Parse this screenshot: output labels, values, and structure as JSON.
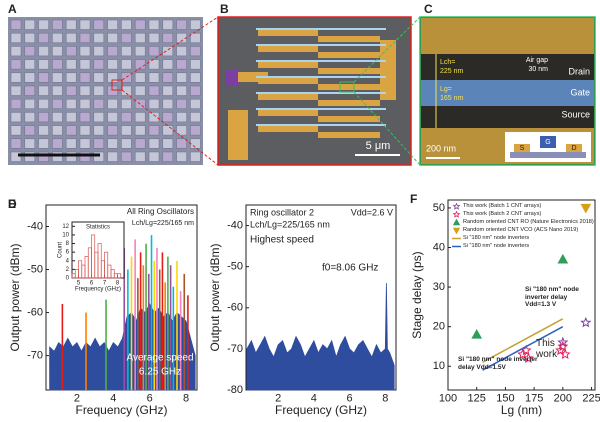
{
  "panels": {
    "a": {
      "label": "A"
    },
    "b": {
      "label": "B",
      "scale_bar": "5 μm"
    },
    "c": {
      "label": "C",
      "drain": "Drain",
      "gate": "Gate",
      "source": "Source",
      "air_gap": "Air gap",
      "air_gap_size": "30 nm",
      "lch": "Lch=",
      "lch_value": "225 nm",
      "lg": "Lg=",
      "lg_value": "165 nm",
      "scale_bar": "200 nm",
      "s": "S",
      "g": "G",
      "d": "D"
    }
  },
  "chart_data": [
    {
      "type": "spectrum",
      "label": "D",
      "xlabel": "Frequency (GHz)",
      "ylabel": "Output power (dBm)",
      "xlim": [
        0.3,
        8.6
      ],
      "ylim": [
        -78,
        -35
      ],
      "xticks": [
        2,
        4,
        6,
        8
      ],
      "yticks": [
        -40,
        -50,
        -60,
        -70
      ],
      "annotations": [
        "All Ring Oscillators",
        "Lch/Lg=225/165 nm",
        "Average speed",
        "6.25 GHz"
      ],
      "x": [
        0.5,
        0.75,
        1,
        1.25,
        1.5,
        1.75,
        2,
        2.25,
        2.5,
        2.75,
        3,
        3.25,
        3.5,
        3.75,
        4,
        4.25,
        4.5,
        4.75,
        5,
        5.25,
        5.5,
        5.75,
        6,
        6.25,
        6.5,
        6.75,
        7,
        7.25,
        7.5,
        7.75,
        8,
        8.25,
        8.5
      ],
      "series": [
        {
          "color": "#2f4d9e",
          "values": [
            -68,
            -69,
            -67,
            -68,
            -66,
            -68,
            -67,
            -69,
            -67,
            -68,
            -66,
            -68,
            -67,
            -69,
            -67,
            -68,
            -66,
            -61,
            -60,
            -62,
            -59,
            -60,
            -58,
            -60,
            -59,
            -61,
            -60,
            -62,
            -60,
            -61,
            -62,
            -66,
            -70
          ]
        }
      ],
      "peaks": {
        "x": [
          1.2,
          2.5,
          3.6,
          4.6,
          4.8,
          5.0,
          5.2,
          5.35,
          5.5,
          5.65,
          5.8,
          5.95,
          6.1,
          6.25,
          6.4,
          6.55,
          6.7,
          6.85,
          7.0,
          7.15,
          7.3,
          7.5,
          7.7,
          7.9,
          8.1
        ],
        "values": [
          -58,
          -60,
          -57,
          -45,
          -50,
          -47,
          -43,
          -52,
          -46,
          -49,
          -44,
          -51,
          -42,
          -48,
          -45,
          -50,
          -46,
          -53,
          -47,
          -49,
          -54,
          -48,
          -55,
          -51,
          -56
        ],
        "colors": [
          "#e41a1c",
          "#ff7f00",
          "#4daf4a",
          "#984ea3",
          "#00bcd4",
          "#ffd700",
          "#f781bf",
          "#a65628",
          "#e41a1c",
          "#ff7f00",
          "#4daf4a",
          "#984ea3",
          "#00bcd4",
          "#ffd700",
          "#f781bf",
          "#a65628",
          "#e41a1c",
          "#ff7f00",
          "#4daf4a",
          "#984ea3",
          "#00bcd4",
          "#ffd700",
          "#f781bf",
          "#a65628",
          "#e41a1c"
        ]
      },
      "inset": {
        "type": "histogram",
        "title": "Statistics",
        "xlabel": "Frequency (GHz)",
        "ylabel": "Count",
        "color": "#d9534f",
        "bins": [
          4.5,
          4.75,
          5,
          5.25,
          5.5,
          5.75,
          6,
          6.25,
          6.5,
          6.75,
          7,
          7.25,
          7.5,
          7.75,
          8,
          8.25
        ],
        "values": [
          1,
          2,
          4,
          3,
          5,
          7,
          10,
          6,
          8,
          4,
          6,
          3,
          2,
          1,
          1
        ],
        "xlim": [
          4.5,
          8.5
        ],
        "ylim": [
          0,
          13
        ],
        "xticks": [
          5,
          6,
          7,
          8
        ],
        "yticks": [
          0,
          2,
          4,
          6,
          8,
          10,
          12
        ]
      }
    },
    {
      "type": "spectrum",
      "label": "E",
      "xlabel": "Frequency (GHz)",
      "ylabel": "Output power (dBm)",
      "xlim": [
        0.2,
        8.6
      ],
      "ylim": [
        -80,
        -35
      ],
      "xticks": [
        2,
        4,
        6,
        8
      ],
      "yticks": [
        -40,
        -50,
        -60,
        -70,
        -80
      ],
      "annotations": [
        "Ring oscillator 2",
        "Lch/Lg=225/165 nm",
        "Highest speed",
        "Vdd=2.6 V",
        "f0=8.06 GHz"
      ],
      "x": [
        0.25,
        0.5,
        0.75,
        1,
        1.25,
        1.5,
        1.75,
        2,
        2.25,
        2.5,
        2.75,
        3,
        3.25,
        3.5,
        3.75,
        4,
        4.25,
        4.5,
        4.75,
        5,
        5.25,
        5.5,
        5.75,
        6,
        6.25,
        6.5,
        6.75,
        7,
        7.25,
        7.5,
        7.75,
        8,
        8.06,
        8.12,
        8.25,
        8.5
      ],
      "series": [
        {
          "color": "#2f4d9e",
          "values": [
            -70,
            -68,
            -71,
            -69,
            -67,
            -70,
            -72,
            -69,
            -68,
            -71,
            -70,
            -67,
            -69,
            -72,
            -70,
            -68,
            -71,
            -69,
            -70,
            -68,
            -72,
            -69,
            -67,
            -70,
            -71,
            -69,
            -68,
            -70,
            -72,
            -69,
            -71,
            -70,
            -54,
            -70,
            -71,
            -74
          ]
        }
      ]
    },
    {
      "type": "scatter",
      "label": "F",
      "xlabel": "Lg (nm)",
      "ylabel": "Stage delay (ps)",
      "xlim": [
        100,
        228
      ],
      "ylim": [
        4,
        52
      ],
      "xticks": [
        100,
        125,
        150,
        175,
        200,
        225
      ],
      "yticks": [
        10,
        20,
        30,
        40,
        50
      ],
      "annotations": [
        "Si \"180 nm\" node inverter delay Vdd=1.3 V",
        "Si \"180 nm\" node inverter delay Vdd=1.5V",
        "This work"
      ],
      "series": [
        {
          "name": "This work (Batch 1 CNT arrays)",
          "color": "#7b3fa0",
          "marker": "star-open",
          "x": [
            200,
            220
          ],
          "values": [
            16,
            21
          ]
        },
        {
          "name": "This work (Batch 2 CNT arrays)",
          "color": "#e0245e",
          "marker": "star-open",
          "x": [
            165,
            168,
            170,
            198,
            200,
            202
          ],
          "values": [
            13,
            14,
            12,
            14,
            15,
            13
          ]
        },
        {
          "name": "Random oriented CNT RO (Nature Electronics 2018)",
          "color": "#2e9e5b",
          "marker": "triangle",
          "x": [
            125,
            200
          ],
          "values": [
            18,
            37
          ]
        },
        {
          "name": "Random oriented CNT VCO (ACS Nano 2019)",
          "color": "#d4a017",
          "marker": "triangle-down",
          "x": [
            220
          ],
          "values": [
            50
          ]
        },
        {
          "name": "Si \"180 nm\" node inverters",
          "color": "#c8a030",
          "marker": "line",
          "x": [
            130,
            200
          ],
          "values": [
            11,
            22
          ]
        },
        {
          "name": "Si \"180 nm\" node inverters",
          "color": "#3060c0",
          "marker": "line",
          "x": [
            130,
            200
          ],
          "values": [
            9,
            20
          ]
        }
      ]
    }
  ]
}
